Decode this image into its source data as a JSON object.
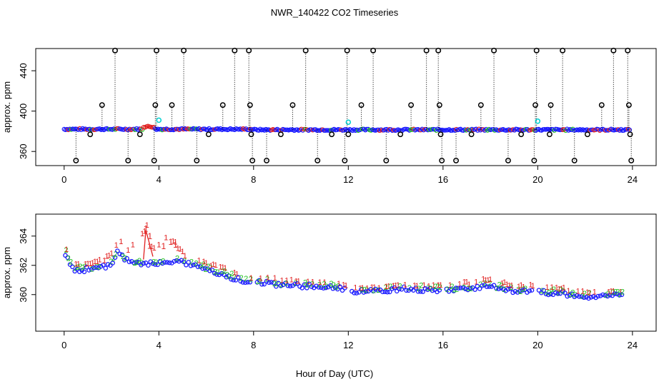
{
  "chart_data": [
    {
      "type": "scatter",
      "panel": "top",
      "title": "NWR_140422  CO2 Timeseries",
      "ylabel": "approx. ppm",
      "xlim": [
        -1.2,
        25
      ],
      "ylim": [
        346,
        462
      ],
      "xticks": [
        "0",
        "4",
        "8",
        "12",
        "16",
        "20",
        "24"
      ],
      "yticks": [
        "360",
        "400",
        "440"
      ],
      "baseline_ppm": 381.5,
      "series_colors": {
        "main": "#1a1aff",
        "alt": "#e02020",
        "green": "#20c020",
        "flagged": "#000000",
        "cyan": "#00d0d0"
      },
      "flagged_outliers_high_x": [
        2.15,
        3.9,
        5.05,
        7.2,
        7.8,
        10.2,
        11.95,
        13.05,
        15.3,
        15.8,
        18.15,
        19.95,
        21.05,
        23.2,
        23.8
      ],
      "flagged_outliers_mid_x": [
        1.6,
        3.85,
        4.55,
        6.7,
        7.85,
        9.65,
        12.55,
        14.65,
        15.85,
        17.6,
        19.9,
        20.55,
        22.7,
        23.85
      ],
      "flagged_outliers_low_x": [
        0.5,
        2.7,
        3.8,
        5.6,
        7.95,
        8.55,
        10.7,
        11.85,
        13.6,
        15.95,
        16.55,
        18.75,
        19.85,
        21.55,
        23.95
      ],
      "flagged_outliers_near_x": [
        1.1,
        3.2,
        6.1,
        7.9,
        9.15,
        11.3,
        12.0,
        14.2,
        15.9,
        17.2,
        19.3,
        20.5,
        22.1,
        23.9
      ],
      "cyan_points": [
        [
          4.0,
          391
        ],
        [
          12.0,
          389
        ],
        [
          20.0,
          390
        ]
      ],
      "high_value": 460,
      "mid_value": 406,
      "low_value": 351,
      "near_value": 377
    },
    {
      "type": "scatter",
      "panel": "bottom",
      "xlabel": "Hour of Day (UTC)",
      "ylabel": "approx. ppm",
      "xlim": [
        -1.2,
        25
      ],
      "ylim": [
        357.5,
        365.5
      ],
      "xticks": [
        "0",
        "4",
        "8",
        "12",
        "16",
        "20",
        "24"
      ],
      "yticks": [
        "360",
        "362",
        "364"
      ],
      "series": [
        {
          "name": "1",
          "color": "#e02020",
          "marker": "1"
        },
        {
          "name": "2",
          "color": "#20c020",
          "marker": "2"
        },
        {
          "name": "3",
          "color": "#1a1aff",
          "marker": "o"
        }
      ],
      "gaps": [
        [
          7.9,
          8.1
        ],
        [
          11.9,
          12.05
        ],
        [
          15.85,
          16.1
        ],
        [
          19.85,
          20.05
        ]
      ],
      "curve": [
        [
          0.05,
          362.9
        ],
        [
          0.3,
          362.0
        ],
        [
          0.5,
          361.7
        ],
        [
          1.0,
          361.85
        ],
        [
          1.5,
          361.9
        ],
        [
          2.0,
          362.2
        ],
        [
          2.25,
          363.1
        ],
        [
          2.5,
          362.6
        ],
        [
          3.0,
          362.2
        ],
        [
          3.5,
          362.2
        ],
        [
          4.0,
          362.3
        ],
        [
          4.5,
          362.4
        ],
        [
          5.0,
          362.3
        ],
        [
          5.5,
          362.1
        ],
        [
          6.0,
          361.8
        ],
        [
          6.5,
          361.6
        ],
        [
          7.0,
          361.3
        ],
        [
          7.5,
          361.1
        ],
        [
          7.9,
          361.0
        ],
        [
          8.1,
          361.0
        ],
        [
          8.5,
          360.9
        ],
        [
          9.0,
          360.8
        ],
        [
          9.5,
          360.75
        ],
        [
          10.0,
          360.7
        ],
        [
          10.5,
          360.7
        ],
        [
          11.0,
          360.65
        ],
        [
          11.5,
          360.6
        ],
        [
          11.9,
          360.45
        ],
        [
          12.05,
          360.35
        ],
        [
          12.5,
          360.3
        ],
        [
          13.0,
          360.35
        ],
        [
          13.5,
          360.4
        ],
        [
          14.0,
          360.45
        ],
        [
          14.5,
          360.5
        ],
        [
          15.0,
          360.45
        ],
        [
          15.5,
          360.4
        ],
        [
          15.85,
          360.4
        ],
        [
          16.1,
          360.4
        ],
        [
          16.5,
          360.45
        ],
        [
          17.0,
          360.5
        ],
        [
          17.5,
          360.55
        ],
        [
          17.8,
          360.8
        ],
        [
          18.0,
          360.65
        ],
        [
          18.5,
          360.45
        ],
        [
          19.0,
          360.35
        ],
        [
          19.5,
          360.3
        ],
        [
          19.85,
          360.3
        ],
        [
          20.05,
          360.3
        ],
        [
          20.5,
          360.2
        ],
        [
          21.0,
          360.2
        ],
        [
          21.5,
          360.05
        ],
        [
          22.0,
          359.95
        ],
        [
          22.5,
          360.0
        ],
        [
          23.0,
          360.05
        ],
        [
          23.6,
          360.1
        ]
      ],
      "series1_offsets": [
        [
          0,
          0.25
        ],
        [
          1.2,
          0.5
        ],
        [
          2.2,
          0.6
        ],
        [
          2.8,
          0.9
        ],
        [
          3.45,
          2.4
        ],
        [
          3.6,
          1.0
        ],
        [
          4.2,
          1.3
        ],
        [
          4.6,
          1.4
        ],
        [
          5.0,
          0.6
        ],
        [
          6.0,
          0.4
        ],
        [
          8.0,
          0.2
        ],
        [
          9.0,
          0.3
        ],
        [
          11.5,
          0.2
        ],
        [
          13.0,
          0.15
        ],
        [
          18.0,
          0.4
        ],
        [
          24,
          0.15
        ]
      ]
    }
  ]
}
